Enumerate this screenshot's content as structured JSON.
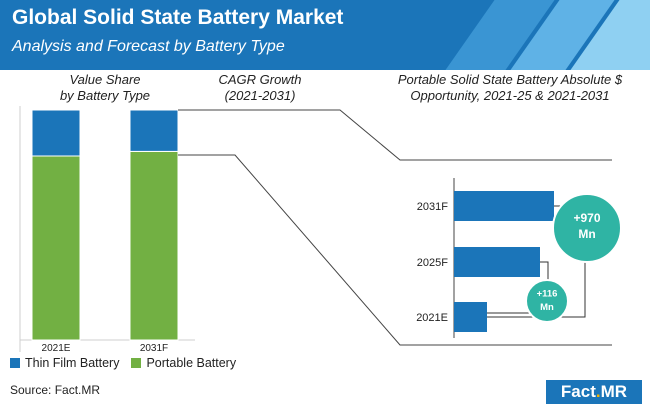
{
  "header": {
    "title": "Global Solid State Battery Market",
    "subtitle": "Analysis and Forecast by Battery Type"
  },
  "panels": {
    "value_share": "Value Share\nby Battery Type",
    "cagr": "CAGR Growth\n(2021-2031)",
    "opportunity": "Portable Solid State Battery Absolute $\nOpportunity, 2021-25 & 2021-2031"
  },
  "legend": [
    {
      "name": "Thin Film Battery",
      "color": "#1b75b9"
    },
    {
      "name": "Portable Battery",
      "color": "#72b043"
    }
  ],
  "source": "Source: Fact.MR",
  "logo": {
    "main": "Fact",
    "dot": ".",
    "tail": "MR"
  },
  "colors": {
    "header": "#1b75b9",
    "thin_film": "#1b75b9",
    "portable": "#72b043",
    "bubble": "#2fb4a4"
  },
  "chart_data": [
    {
      "type": "bar",
      "stacked": true,
      "categories": [
        "2021E",
        "2031F"
      ],
      "series": [
        {
          "name": "Portable Battery",
          "values": [
            80,
            82
          ]
        },
        {
          "name": "Thin Film Battery",
          "values": [
            20,
            18
          ]
        }
      ],
      "ylim": [
        0,
        100
      ]
    },
    {
      "type": "bar",
      "orientation": "horizontal",
      "categories": [
        "2031F",
        "2025F",
        "2021E"
      ],
      "values": [
        100,
        86,
        33
      ],
      "xlim": [
        0,
        100
      ],
      "annotations": [
        {
          "label": "+970 Mn",
          "between": [
            "2021E",
            "2031F"
          ]
        },
        {
          "label": "+116 Mn",
          "between": [
            "2021E",
            "2025F"
          ]
        }
      ]
    }
  ]
}
